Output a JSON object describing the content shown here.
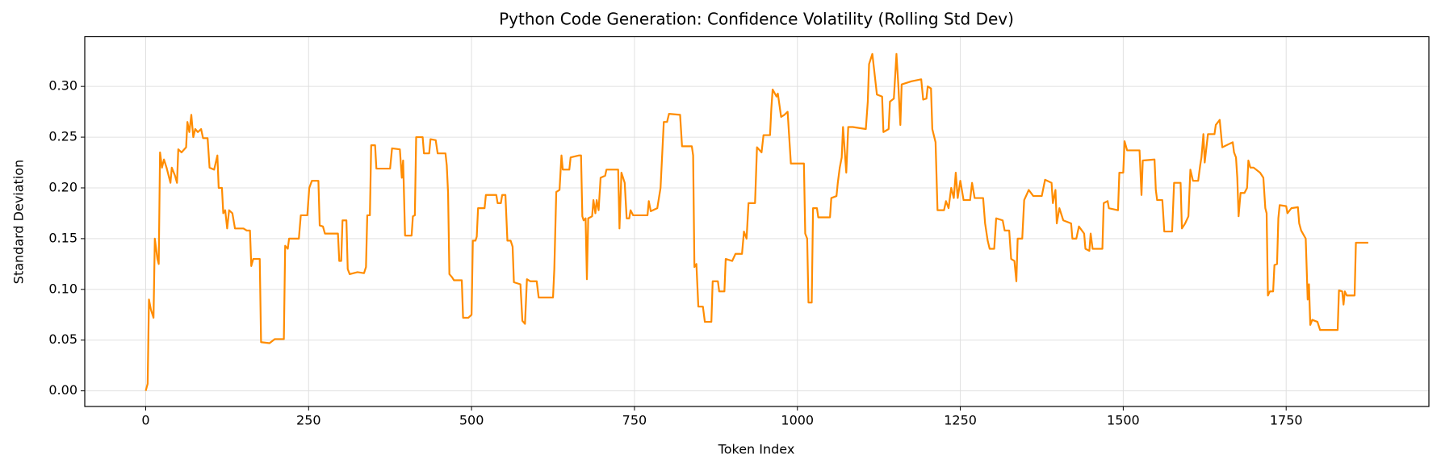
{
  "chart_data": {
    "type": "line",
    "title": "Python Code Generation: Confidence Volatility (Rolling Std Dev)",
    "x_label": "Token Index",
    "y_label": "Standard Deviation",
    "xlim": [
      -93.5,
      1969
    ],
    "ylim": [
      -0.0154,
      0.349
    ],
    "xticks": [
      0,
      250,
      500,
      750,
      1000,
      1250,
      1500,
      1750
    ],
    "yticks": [
      {
        "value": 0,
        "label": "0.00"
      },
      {
        "value": 0.05,
        "label": "0.05"
      },
      {
        "value": 0.1,
        "label": "0.10"
      },
      {
        "value": 0.15,
        "label": "0.15"
      },
      {
        "value": 0.2,
        "label": "0.20"
      },
      {
        "value": 0.25,
        "label": "0.25"
      },
      {
        "value": 0.3,
        "label": "0.30"
      }
    ],
    "grid": true,
    "series": [
      {
        "color": "#ff8c00",
        "x": [
          0,
          3,
          5,
          8,
          12,
          14,
          18,
          20,
          22,
          25,
          28,
          32,
          38,
          40,
          45,
          48,
          50,
          55,
          62,
          64,
          67,
          70,
          73,
          76,
          80,
          85,
          88,
          95,
          98,
          105,
          110,
          112,
          117,
          119,
          122,
          125,
          128,
          133,
          137,
          150,
          155,
          160,
          162,
          165,
          175,
          177,
          190,
          198,
          212,
          214,
          218,
          220,
          235,
          238,
          248,
          251,
          255,
          265,
          267,
          272,
          275,
          295,
          297,
          300,
          302,
          308,
          310,
          313,
          325,
          335,
          338,
          340,
          344,
          346,
          352,
          354,
          375,
          378,
          390,
          393,
          395,
          398,
          408,
          410,
          413,
          415,
          425,
          427,
          435,
          437,
          445,
          448,
          460,
          462,
          464,
          466,
          470,
          473,
          485,
          487,
          495,
          500,
          502,
          506,
          508,
          510,
          520,
          522,
          538,
          540,
          545,
          547,
          552,
          555,
          560,
          563,
          565,
          575,
          578,
          582,
          585,
          590,
          600,
          603,
          625,
          627,
          630,
          635,
          638,
          640,
          650,
          652,
          665,
          668,
          670,
          672,
          675,
          677,
          679,
          685,
          687,
          690,
          692,
          695,
          698,
          705,
          707,
          725,
          727,
          730,
          735,
          738,
          742,
          744,
          748,
          770,
          772,
          775,
          785,
          790,
          795,
          800,
          803,
          820,
          823,
          838,
          840,
          842,
          845,
          848,
          855,
          858,
          868,
          870,
          878,
          880,
          888,
          890,
          900,
          905,
          915,
          918,
          922,
          925,
          935,
          938,
          945,
          948,
          958,
          960,
          962,
          968,
          970,
          975,
          980,
          985,
          990,
          1010,
          1012,
          1015,
          1017,
          1022,
          1024,
          1030,
          1032,
          1050,
          1052,
          1060,
          1062,
          1065,
          1068,
          1070,
          1075,
          1078,
          1085,
          1105,
          1108,
          1110,
          1115,
          1118,
          1122,
          1130,
          1132,
          1140,
          1142,
          1148,
          1152,
          1155,
          1158,
          1160,
          1175,
          1190,
          1193,
          1198,
          1200,
          1205,
          1207,
          1212,
          1215,
          1225,
          1228,
          1232,
          1236,
          1240,
          1243,
          1246,
          1250,
          1255,
          1265,
          1268,
          1272,
          1285,
          1288,
          1292,
          1295,
          1302,
          1305,
          1315,
          1318,
          1325,
          1328,
          1333,
          1336,
          1338,
          1345,
          1348,
          1355,
          1362,
          1375,
          1380,
          1390,
          1392,
          1396,
          1398,
          1402,
          1408,
          1420,
          1422,
          1428,
          1432,
          1440,
          1442,
          1448,
          1450,
          1453,
          1468,
          1470,
          1476,
          1478,
          1492,
          1494,
          1500,
          1502,
          1506,
          1525,
          1528,
          1530,
          1548,
          1550,
          1552,
          1560,
          1563,
          1575,
          1578,
          1588,
          1590,
          1595,
          1600,
          1603,
          1607,
          1615,
          1618,
          1620,
          1623,
          1625,
          1630,
          1640,
          1642,
          1648,
          1652,
          1668,
          1670,
          1673,
          1675,
          1677,
          1680,
          1686,
          1690,
          1692,
          1695,
          1700,
          1710,
          1715,
          1718,
          1720,
          1722,
          1725,
          1730,
          1732,
          1736,
          1738,
          1740,
          1750,
          1752,
          1758,
          1768,
          1770,
          1773,
          1780,
          1783,
          1785,
          1787,
          1790,
          1798,
          1802,
          1829,
          1831,
          1836,
          1838,
          1840,
          1843,
          1855,
          1857,
          1876
        ],
        "values": [
          0,
          0.007,
          0.09,
          0.08,
          0.072,
          0.15,
          0.13,
          0.125,
          0.235,
          0.22,
          0.228,
          0.22,
          0.205,
          0.22,
          0.212,
          0.205,
          0.238,
          0.235,
          0.24,
          0.265,
          0.255,
          0.272,
          0.25,
          0.258,
          0.255,
          0.258,
          0.249,
          0.249,
          0.22,
          0.218,
          0.232,
          0.2,
          0.2,
          0.175,
          0.178,
          0.16,
          0.178,
          0.175,
          0.16,
          0.16,
          0.158,
          0.158,
          0.123,
          0.13,
          0.13,
          0.048,
          0.047,
          0.051,
          0.051,
          0.143,
          0.14,
          0.15,
          0.15,
          0.173,
          0.173,
          0.2,
          0.207,
          0.207,
          0.163,
          0.162,
          0.155,
          0.155,
          0.128,
          0.128,
          0.168,
          0.168,
          0.12,
          0.115,
          0.117,
          0.116,
          0.122,
          0.173,
          0.173,
          0.242,
          0.242,
          0.219,
          0.219,
          0.239,
          0.238,
          0.21,
          0.227,
          0.153,
          0.153,
          0.172,
          0.173,
          0.25,
          0.25,
          0.234,
          0.234,
          0.248,
          0.247,
          0.234,
          0.234,
          0.222,
          0.195,
          0.115,
          0.112,
          0.109,
          0.109,
          0.072,
          0.072,
          0.075,
          0.148,
          0.148,
          0.152,
          0.18,
          0.18,
          0.193,
          0.193,
          0.185,
          0.185,
          0.193,
          0.193,
          0.148,
          0.148,
          0.142,
          0.107,
          0.105,
          0.069,
          0.066,
          0.11,
          0.108,
          0.108,
          0.092,
          0.092,
          0.12,
          0.196,
          0.198,
          0.232,
          0.218,
          0.218,
          0.23,
          0.232,
          0.232,
          0.172,
          0.168,
          0.17,
          0.11,
          0.17,
          0.172,
          0.188,
          0.175,
          0.188,
          0.178,
          0.21,
          0.212,
          0.218,
          0.218,
          0.16,
          0.215,
          0.205,
          0.17,
          0.17,
          0.178,
          0.173,
          0.173,
          0.187,
          0.177,
          0.18,
          0.2,
          0.265,
          0.265,
          0.273,
          0.272,
          0.241,
          0.241,
          0.232,
          0.122,
          0.125,
          0.083,
          0.083,
          0.068,
          0.068,
          0.108,
          0.108,
          0.098,
          0.098,
          0.13,
          0.128,
          0.135,
          0.135,
          0.157,
          0.15,
          0.185,
          0.185,
          0.24,
          0.235,
          0.252,
          0.252,
          0.278,
          0.297,
          0.29,
          0.293,
          0.27,
          0.272,
          0.275,
          0.224,
          0.224,
          0.155,
          0.15,
          0.087,
          0.087,
          0.18,
          0.18,
          0.171,
          0.171,
          0.19,
          0.192,
          0.205,
          0.22,
          0.23,
          0.26,
          0.215,
          0.26,
          0.26,
          0.258,
          0.285,
          0.322,
          0.332,
          0.315,
          0.292,
          0.29,
          0.255,
          0.258,
          0.285,
          0.288,
          0.332,
          0.3,
          0.262,
          0.302,
          0.305,
          0.307,
          0.287,
          0.288,
          0.3,
          0.298,
          0.258,
          0.245,
          0.178,
          0.178,
          0.187,
          0.18,
          0.2,
          0.19,
          0.215,
          0.19,
          0.207,
          0.188,
          0.188,
          0.205,
          0.19,
          0.19,
          0.165,
          0.148,
          0.14,
          0.14,
          0.17,
          0.168,
          0.158,
          0.158,
          0.13,
          0.128,
          0.108,
          0.15,
          0.15,
          0.188,
          0.198,
          0.192,
          0.192,
          0.208,
          0.205,
          0.185,
          0.198,
          0.165,
          0.18,
          0.168,
          0.165,
          0.15,
          0.15,
          0.162,
          0.155,
          0.14,
          0.138,
          0.155,
          0.14,
          0.14,
          0.185,
          0.187,
          0.18,
          0.178,
          0.215,
          0.215,
          0.246,
          0.237,
          0.237,
          0.193,
          0.227,
          0.228,
          0.198,
          0.188,
          0.188,
          0.157,
          0.157,
          0.205,
          0.205,
          0.16,
          0.165,
          0.172,
          0.218,
          0.207,
          0.207,
          0.222,
          0.23,
          0.253,
          0.225,
          0.253,
          0.253,
          0.262,
          0.267,
          0.24,
          0.245,
          0.235,
          0.23,
          0.21,
          0.172,
          0.195,
          0.195,
          0.2,
          0.227,
          0.22,
          0.22,
          0.215,
          0.21,
          0.18,
          0.175,
          0.094,
          0.098,
          0.098,
          0.124,
          0.125,
          0.17,
          0.183,
          0.182,
          0.175,
          0.18,
          0.181,
          0.165,
          0.158,
          0.15,
          0.09,
          0.105,
          0.065,
          0.07,
          0.068,
          0.06,
          0.06,
          0.099,
          0.098,
          0.085,
          0.098,
          0.094,
          0.094,
          0.146,
          0.146
        ]
      }
    ]
  }
}
